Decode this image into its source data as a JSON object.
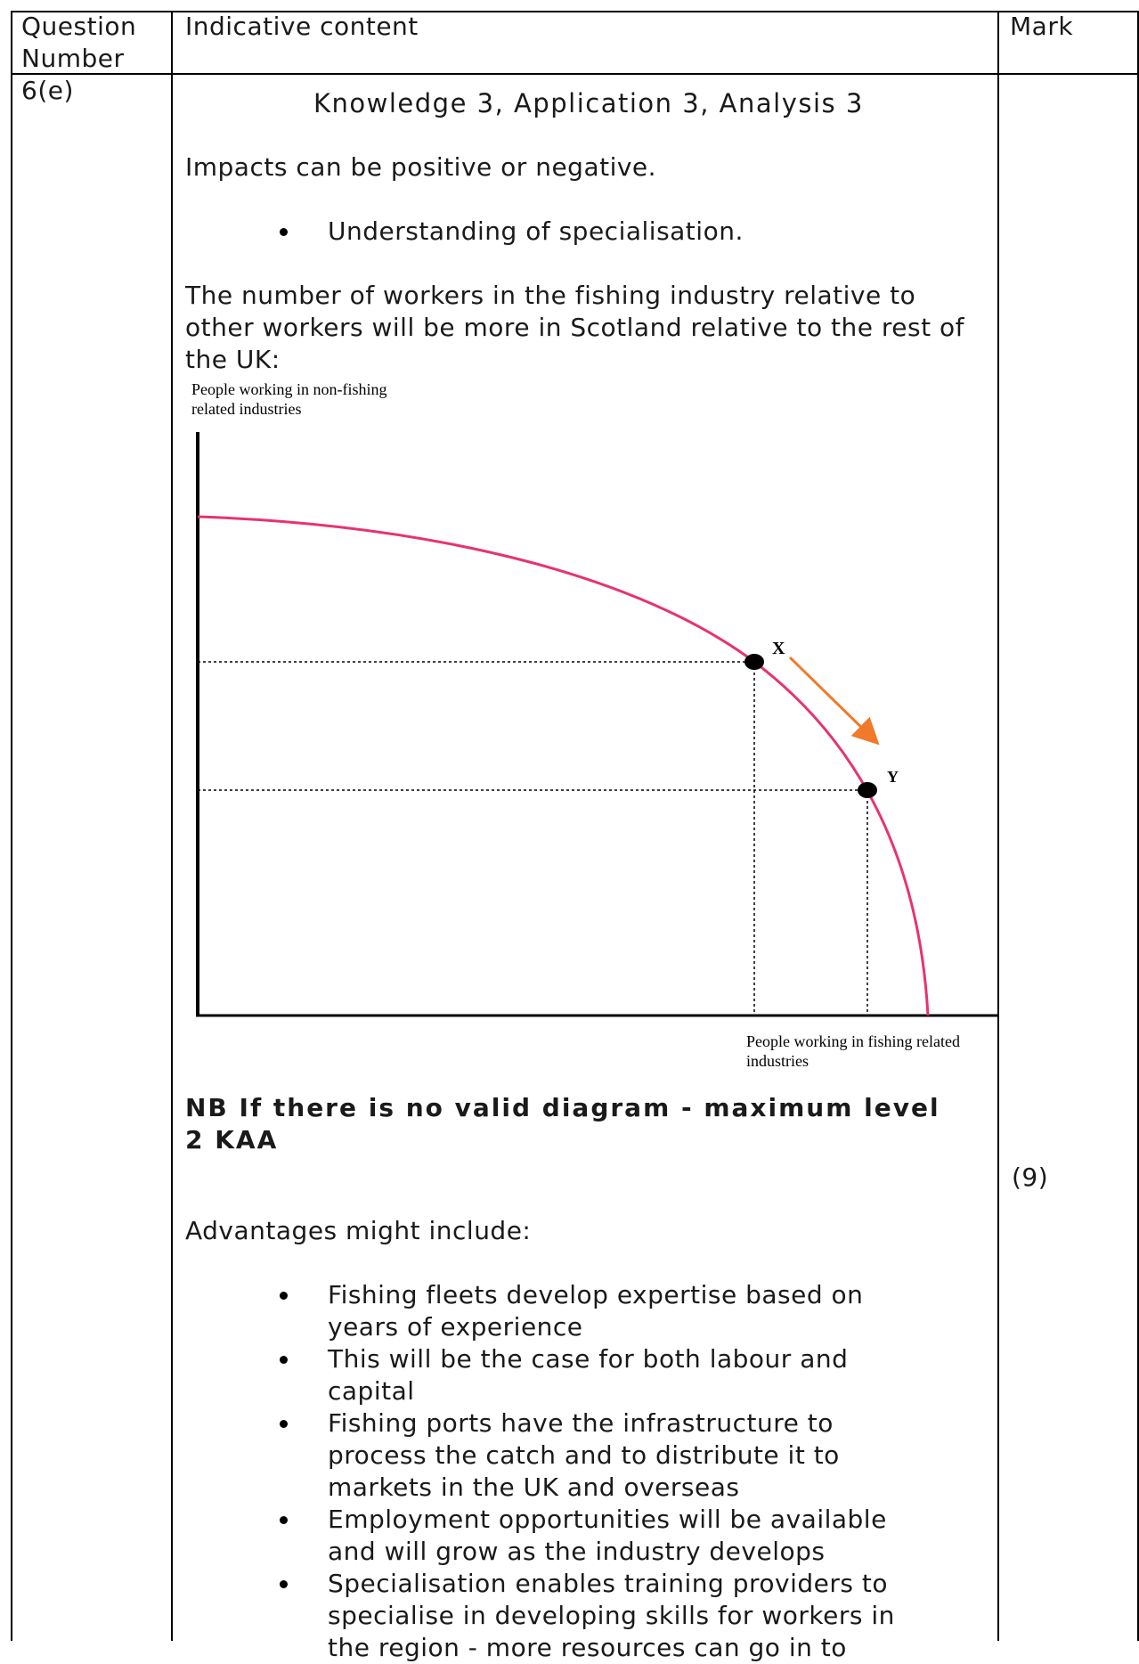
{
  "table": {
    "headers": {
      "question_number": "Question\nNumber",
      "indicative_content": "Indicative content",
      "mark": "Mark"
    },
    "row": {
      "question_number": "6(e)",
      "content_heading": "Knowledge 3, Application 3, Analysis 3",
      "intro": "Impacts can be positive or negative.",
      "first_bullets": [
        "Understanding of specialisation."
      ],
      "paragraph": "The number of workers in the fishing industry relative to other workers will be more in Scotland relative to the rest of the UK:",
      "nb": "NB If there is no valid diagram - maximum level 2 KAA",
      "advantages_heading": "Advantages might include:",
      "advantages": [
        "Fishing fleets develop expertise based on years of experience",
        "This will be the case for both labour and capital",
        "Fishing ports have the infrastructure to process the catch and to distribute it to markets in the UK and overseas",
        "Employment opportunities will be available and will grow as the industry develops",
        "Specialisation enables training providers to specialise in developing skills for workers in the region - more resources can go in to"
      ],
      "mark": "(9)"
    }
  },
  "chart_data": {
    "type": "line",
    "ylabel": "People working in non-fishing related industries",
    "xlabel": "People working in fishing related industries",
    "curve_color": "#e8336d",
    "arrow_color": "#f07a2a",
    "points": [
      {
        "label": "X",
        "x": 0.61,
        "y": 0.51
      },
      {
        "label": "Y",
        "x": 0.78,
        "y": 0.32
      }
    ],
    "curve": "production possibility frontier (concave)"
  }
}
